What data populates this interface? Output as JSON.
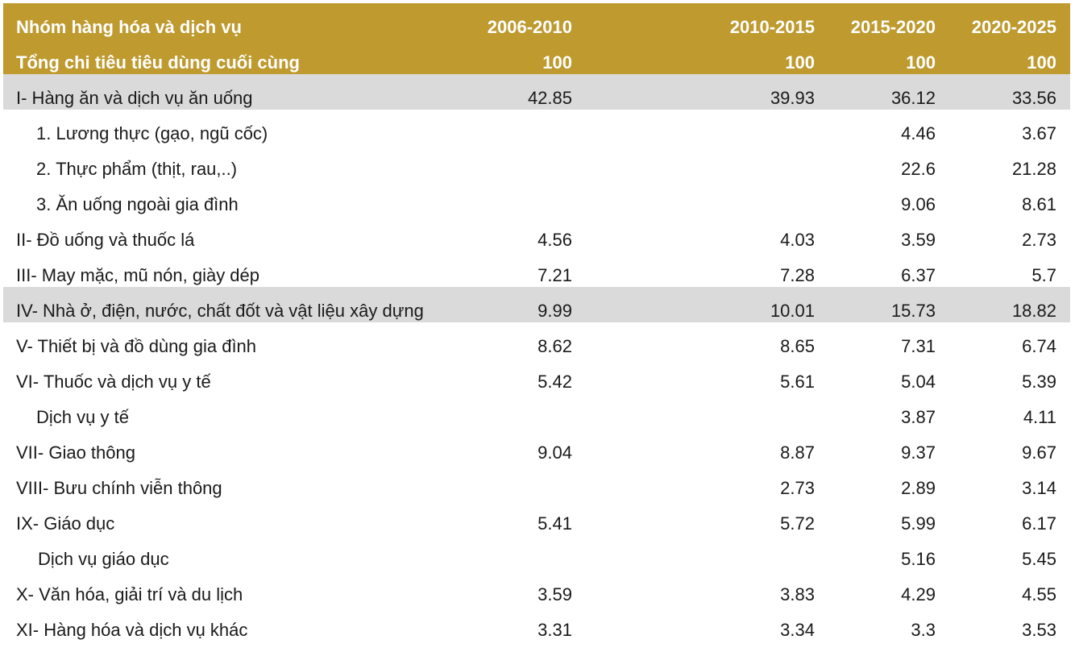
{
  "header": {
    "title": "Nhóm hàng hóa và dịch vụ",
    "columns": [
      "2006-2010",
      "2010-2015",
      "2015-2020",
      "2020-2025"
    ],
    "total_label": "Tổng chi tiêu tiêu dùng cuối cùng",
    "totals": [
      100,
      100,
      100,
      100
    ]
  },
  "rows": [
    {
      "label": "I- Hàng ăn và dịch vụ ăn uống",
      "values": [
        42.85,
        39.93,
        36.12,
        33.56
      ]
    },
    {
      "label": "1. Lương thực (gạo, ngũ cốc)",
      "values": [
        null,
        null,
        4.46,
        3.67
      ]
    },
    {
      "label": "2. Thực phẩm (thịt, rau,..)",
      "values": [
        null,
        null,
        22.6,
        21.28
      ]
    },
    {
      "label": "3. Ăn uống ngoài gia đình",
      "values": [
        null,
        null,
        9.06,
        8.61
      ]
    },
    {
      "label": "II- Đồ uống và thuốc lá",
      "values": [
        4.56,
        4.03,
        3.59,
        2.73
      ]
    },
    {
      "label": "III- May mặc, mũ nón, giày dép",
      "values": [
        7.21,
        7.28,
        6.37,
        5.7
      ]
    },
    {
      "label": "IV- Nhà ở, điện, nước, chất đốt và vật liệu xây dựng",
      "values": [
        9.99,
        10.01,
        15.73,
        18.82
      ]
    },
    {
      "label": "V- Thiết bị và đồ dùng gia đình",
      "values": [
        8.62,
        8.65,
        7.31,
        6.74
      ]
    },
    {
      "label": "VI- Thuốc và dịch vụ y tế",
      "values": [
        5.42,
        5.61,
        5.04,
        5.39
      ]
    },
    {
      "label": "Dịch vụ y tế",
      "values": [
        null,
        null,
        3.87,
        4.11
      ]
    },
    {
      "label": "VII- Giao thông",
      "values": [
        9.04,
        8.87,
        9.37,
        9.67
      ]
    },
    {
      "label": "VIII- Bưu chính viễn thông",
      "values": [
        null,
        2.73,
        2.89,
        3.14
      ]
    },
    {
      "label": "IX- Giáo dục",
      "values": [
        5.41,
        5.72,
        5.99,
        6.17
      ]
    },
    {
      "label": "Dịch vụ giáo dục",
      "values": [
        null,
        null,
        5.16,
        5.45
      ]
    },
    {
      "label": "X- Văn hóa, giải trí và du lịch",
      "values": [
        3.59,
        3.83,
        4.29,
        4.55
      ]
    },
    {
      "label": "XI- Hàng hóa và dịch vụ khác",
      "values": [
        3.31,
        3.34,
        3.3,
        3.53
      ]
    }
  ]
}
